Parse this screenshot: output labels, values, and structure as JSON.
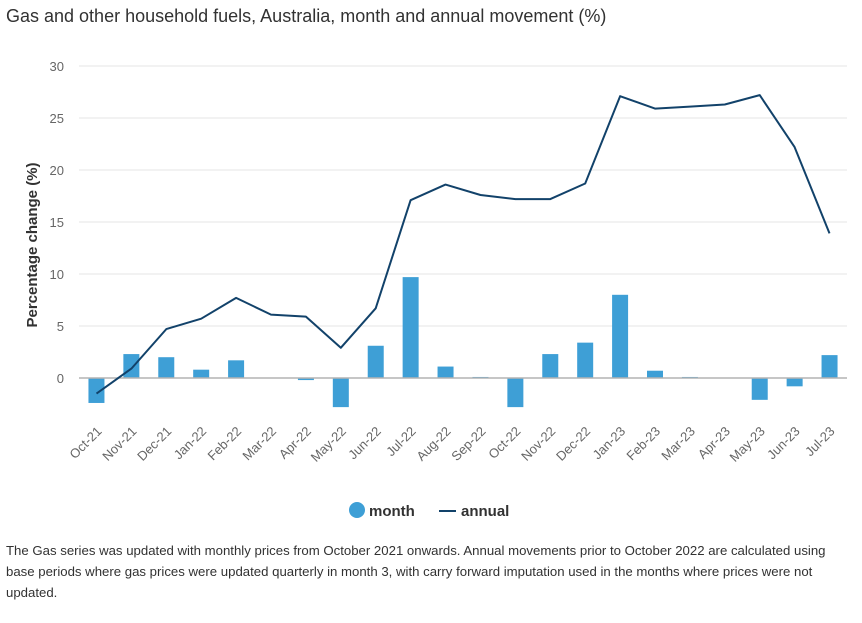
{
  "title": "Gas and other household fuels, Australia, month and annual movement (%)",
  "note": "The Gas series was updated with monthly prices from October 2021 onwards. Annual movements prior to October 2022 are calculated using base periods where gas prices were updated quarterly in month 3, with carry forward imputation used in the months where prices were not updated.",
  "colors": {
    "month": "#3e9fd6",
    "annual": "#12426a",
    "grid": "#e6e6e6",
    "zero": "#b3b3b3"
  },
  "chart_data": {
    "type": "bar+line",
    "categories": [
      "Oct-21",
      "Nov-21",
      "Dec-21",
      "Jan-22",
      "Feb-22",
      "Mar-22",
      "Apr-22",
      "May-22",
      "Jun-22",
      "Jul-22",
      "Aug-22",
      "Sep-22",
      "Oct-22",
      "Nov-22",
      "Dec-22",
      "Jan-23",
      "Feb-23",
      "Mar-23",
      "Apr-23",
      "May-23",
      "Jun-23",
      "Jul-23"
    ],
    "series": [
      {
        "name": "month",
        "type": "bar",
        "values": [
          -2.4,
          2.3,
          2.0,
          0.8,
          1.7,
          0.0,
          -0.2,
          -2.8,
          3.1,
          9.7,
          1.1,
          0.1,
          -2.8,
          2.3,
          3.4,
          8.0,
          0.7,
          0.1,
          0.0,
          -2.1,
          -0.8,
          2.2
        ]
      },
      {
        "name": "annual",
        "type": "line",
        "values": [
          -1.5,
          0.9,
          4.7,
          5.7,
          7.7,
          6.1,
          5.9,
          2.9,
          6.7,
          17.1,
          18.6,
          17.6,
          17.2,
          17.2,
          18.7,
          27.1,
          25.9,
          26.1,
          26.3,
          27.2,
          22.2,
          13.9
        ]
      }
    ],
    "ylabel": "Percentage change (%)",
    "yticks": [
      0,
      5,
      10,
      15,
      20,
      25,
      30
    ],
    "ylim": [
      -4.5,
      30
    ],
    "legend": [
      "month",
      "annual"
    ],
    "legend_position": "bottom-center"
  }
}
